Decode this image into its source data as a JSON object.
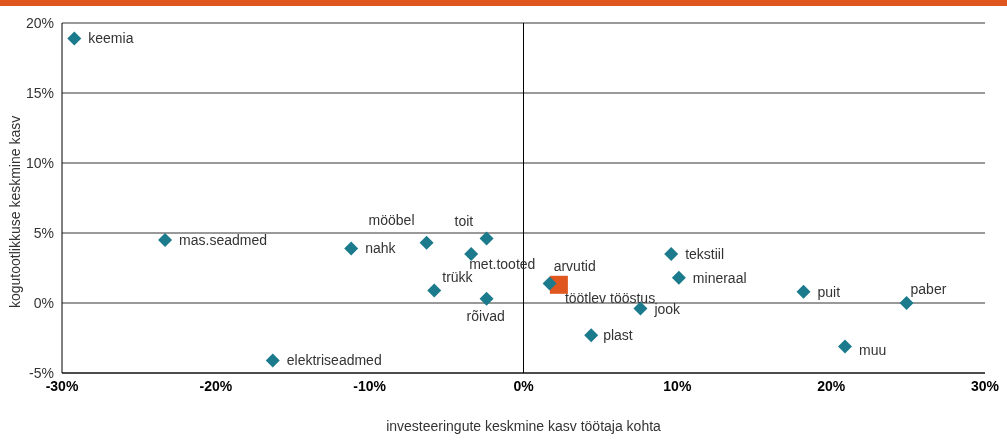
{
  "chart_data": {
    "type": "scatter",
    "xlabel": "investeeringute keskmine kasv töötaja kohta",
    "ylabel": "kogutootlikkuse keskmine kasv",
    "xlim": [
      -30,
      30
    ],
    "xticks": [
      {
        "value": -30,
        "label": "-30%"
      },
      {
        "value": -20,
        "label": "-20%"
      },
      {
        "value": -10,
        "label": "-10%"
      },
      {
        "value": 0,
        "label": "0%"
      },
      {
        "value": 10,
        "label": "10%"
      },
      {
        "value": 20,
        "label": "20%"
      },
      {
        "value": 30,
        "label": "30%"
      }
    ],
    "ylim": [
      -5,
      20
    ],
    "yticks": [
      {
        "value": -5,
        "label": "-5%"
      },
      {
        "value": 0,
        "label": "0%"
      },
      {
        "value": 5,
        "label": "5%"
      },
      {
        "value": 10,
        "label": "10%"
      },
      {
        "value": 15,
        "label": "15%"
      },
      {
        "value": 20,
        "label": "20%"
      }
    ],
    "grid": "y",
    "marker": "diamond",
    "ref_lines": [
      {
        "axis": "x",
        "value": 0,
        "color": "#000000"
      }
    ],
    "series": [
      {
        "color": "#1b7a8c",
        "x": [
          -29.2,
          -23.3,
          -11.2,
          -6.3,
          -2.4,
          -3.4,
          -5.8,
          -2.4,
          -16.3,
          1.7,
          9.6,
          10.1,
          18.2,
          24.9,
          7.6,
          4.4,
          20.9
        ],
        "values": [
          18.9,
          4.5,
          3.9,
          4.3,
          4.6,
          3.5,
          0.9,
          0.3,
          -4.1,
          1.4,
          3.5,
          1.8,
          0.8,
          0.0,
          -0.4,
          -2.3,
          -3.1
        ]
      },
      {
        "name": "töötlev tööstus",
        "color": "#e0561f",
        "marker": "square",
        "x": [
          2.3
        ],
        "values": [
          1.3
        ]
      }
    ],
    "annotations": [
      {
        "text": "keemia",
        "x": -29.2,
        "y": 18.9
      },
      {
        "text": "mas.seadmed",
        "x": -23.3,
        "y": 4.5
      },
      {
        "text": "nahk",
        "x": -11.2,
        "y": 3.9
      },
      {
        "text": "mööbel",
        "x": -6.3,
        "y": 4.3
      },
      {
        "text": "toit",
        "x": -2.4,
        "y": 4.6
      },
      {
        "text": "met.tooted",
        "x": -3.4,
        "y": 3.5
      },
      {
        "text": "trükk",
        "x": -5.8,
        "y": 0.9
      },
      {
        "text": "rõivad",
        "x": -2.4,
        "y": 0.3
      },
      {
        "text": "elektriseadmed",
        "x": -16.3,
        "y": -4.1
      },
      {
        "text": "arvutid",
        "x": 1.7,
        "y": 1.4
      },
      {
        "text": "tekstiil",
        "x": 9.6,
        "y": 3.5
      },
      {
        "text": "mineraal",
        "x": 10.1,
        "y": 1.8
      },
      {
        "text": "puit",
        "x": 18.2,
        "y": 0.8
      },
      {
        "text": "paber",
        "x": 24.9,
        "y": 0.0
      },
      {
        "text": "jook",
        "x": 7.6,
        "y": -0.4
      },
      {
        "text": "plast",
        "x": 4.4,
        "y": -2.3
      },
      {
        "text": "muu",
        "x": 20.9,
        "y": -3.1
      }
    ]
  }
}
